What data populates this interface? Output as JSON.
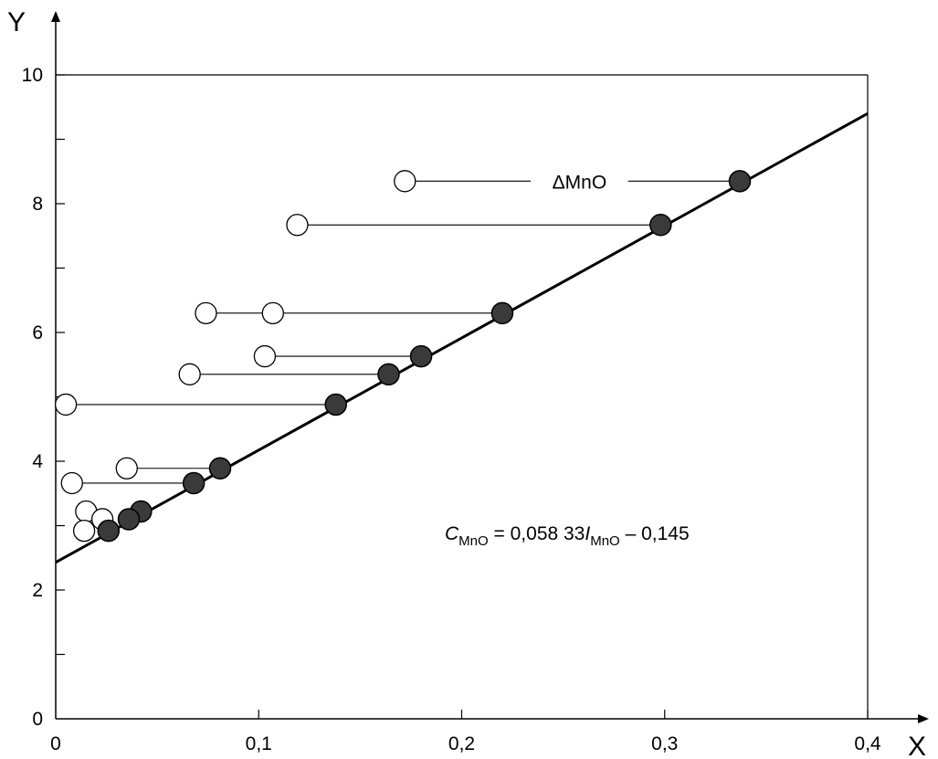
{
  "chart_data": {
    "type": "scatter",
    "xlabel": "X",
    "ylabel": "Y",
    "xlim": [
      0,
      0.4
    ],
    "ylim": [
      0,
      10
    ],
    "x_ticks": [
      0,
      0.1,
      0.2,
      0.3,
      0.4
    ],
    "x_tick_labels": [
      "0",
      "0,1",
      "0,2",
      "0,3",
      "0,4"
    ],
    "y_ticks": [
      0,
      2,
      4,
      6,
      8,
      10
    ],
    "y_tick_labels": [
      "0",
      "2",
      "4",
      "6",
      "8",
      "10"
    ],
    "grid": false,
    "fit_line": {
      "x0": 0,
      "y0": 2.43,
      "x1": 0.4,
      "y1": 9.4
    },
    "pairs": [
      {
        "open": [
          0.005,
          4.88
        ],
        "filled": [
          0.138,
          4.88
        ]
      },
      {
        "open": [
          0.008,
          3.66
        ],
        "filled": [
          0.068,
          3.66
        ]
      },
      {
        "open": [
          0.035,
          3.89
        ],
        "filled": [
          0.081,
          3.89
        ]
      },
      {
        "open": [
          0.015,
          3.22
        ],
        "filled": [
          0.042,
          3.22
        ]
      },
      {
        "open": [
          0.023,
          3.1
        ],
        "filled": [
          0.036,
          3.1
        ]
      },
      {
        "open": [
          0.014,
          2.92
        ],
        "filled": [
          0.026,
          2.92
        ]
      },
      {
        "open": [
          0.066,
          5.35
        ],
        "filled": [
          0.164,
          5.35
        ]
      },
      {
        "open": [
          0.103,
          5.63
        ],
        "filled": [
          0.18,
          5.63
        ]
      },
      {
        "open": [
          0.074,
          6.3
        ],
        "filled": [
          0.22,
          6.3
        ]
      },
      {
        "open": [
          0.107,
          6.3
        ],
        "filled": null
      },
      {
        "open": [
          0.119,
          7.67
        ],
        "filled": [
          0.298,
          7.67
        ]
      },
      {
        "open": [
          0.172,
          8.35
        ],
        "filled": [
          0.337,
          8.35
        ]
      }
    ],
    "connectors": [
      {
        "from": [
          0.007,
          4.88
        ],
        "to": [
          0.138,
          4.88
        ]
      },
      {
        "from": [
          0.01,
          3.66
        ],
        "to": [
          0.068,
          3.66
        ]
      },
      {
        "from": [
          0.037,
          3.89
        ],
        "to": [
          0.081,
          3.89
        ]
      },
      {
        "from": [
          0.068,
          5.35
        ],
        "to": [
          0.164,
          5.35
        ]
      },
      {
        "from": [
          0.105,
          5.63
        ],
        "to": [
          0.18,
          5.63
        ]
      },
      {
        "from": [
          0.076,
          6.3
        ],
        "to": [
          0.107,
          6.3
        ]
      },
      {
        "from": [
          0.109,
          6.3
        ],
        "to": [
          0.22,
          6.3
        ]
      },
      {
        "from": [
          0.121,
          7.67
        ],
        "to": [
          0.298,
          7.67
        ]
      }
    ],
    "delta_line": {
      "y": 8.35,
      "x_start": 0.174,
      "x_gap_start": 0.234,
      "x_gap_end": 0.282,
      "x_end": 0.337
    },
    "delta_label": "ΔMnO",
    "equation": {
      "c": "C",
      "c_sub": "MnO",
      "middle": " = 0,058 33",
      "i": "I",
      "i_sub": "MnO",
      "tail": " – 0,145"
    }
  }
}
